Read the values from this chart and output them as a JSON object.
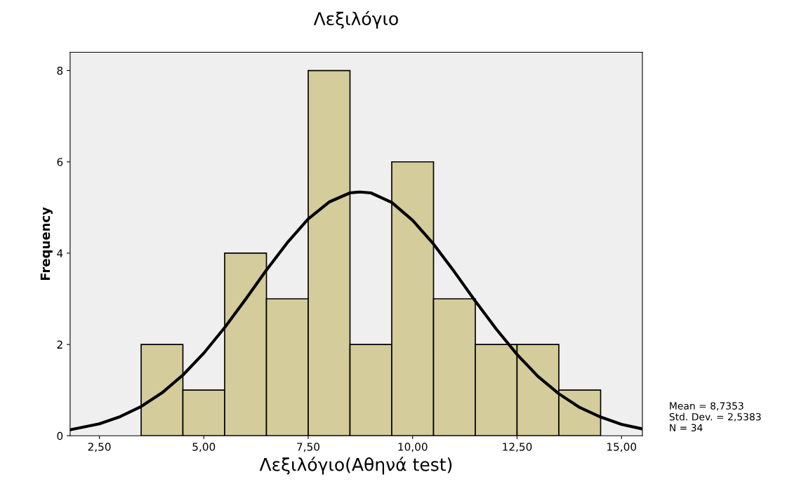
{
  "chart_data": {
    "type": "histogram",
    "title": "Λεξιλόγιο",
    "xlabel": "Λεξιλόγιο(Αθηνά test)",
    "ylabel": "Frequency",
    "series": [
      {
        "color": "#d4cc9a",
        "bins": [
          3.5,
          4.5,
          5.5,
          6.5,
          7.5,
          8.5,
          9.5,
          10.5,
          11.5,
          12.5,
          13.5,
          14.5
        ],
        "values": [
          2,
          1,
          4,
          3,
          8,
          2,
          6,
          3,
          2,
          2,
          1
        ]
      },
      {
        "type": "line",
        "color": "#000000",
        "x": [
          1.8,
          2.5,
          3.0,
          3.5,
          4.0,
          4.5,
          5.0,
          5.5,
          6.0,
          6.5,
          7.0,
          7.5,
          8.0,
          8.5,
          8.74,
          9.0,
          9.5,
          10.0,
          10.5,
          11.0,
          11.5,
          12.0,
          12.5,
          13.0,
          13.5,
          14.0,
          14.5,
          15.0,
          15.5
        ],
        "values": [
          0.13,
          0.26,
          0.42,
          0.64,
          0.94,
          1.33,
          1.81,
          2.37,
          2.99,
          3.63,
          4.23,
          4.75,
          5.12,
          5.32,
          5.34,
          5.32,
          5.11,
          4.72,
          4.2,
          3.59,
          2.95,
          2.34,
          1.78,
          1.3,
          0.92,
          0.62,
          0.41,
          0.25,
          0.15
        ]
      }
    ],
    "xlim": [
      1.8,
      15.5
    ],
    "ylim": [
      0,
      8.4
    ],
    "xticks": [
      {
        "value": 2.5,
        "label": "2,50"
      },
      {
        "value": 5,
        "label": "5,00"
      },
      {
        "value": 7.5,
        "label": "7,50"
      },
      {
        "value": 10,
        "label": "10,00"
      },
      {
        "value": 12.5,
        "label": "12,50"
      },
      {
        "value": 15,
        "label": "15,00"
      }
    ],
    "yticks": [
      0,
      2,
      4,
      6,
      8
    ],
    "grid": false,
    "legend": false,
    "annotations": [
      "Mean = 8,7353",
      "Std. Dev. = 2,5383",
      "N = 34"
    ]
  }
}
